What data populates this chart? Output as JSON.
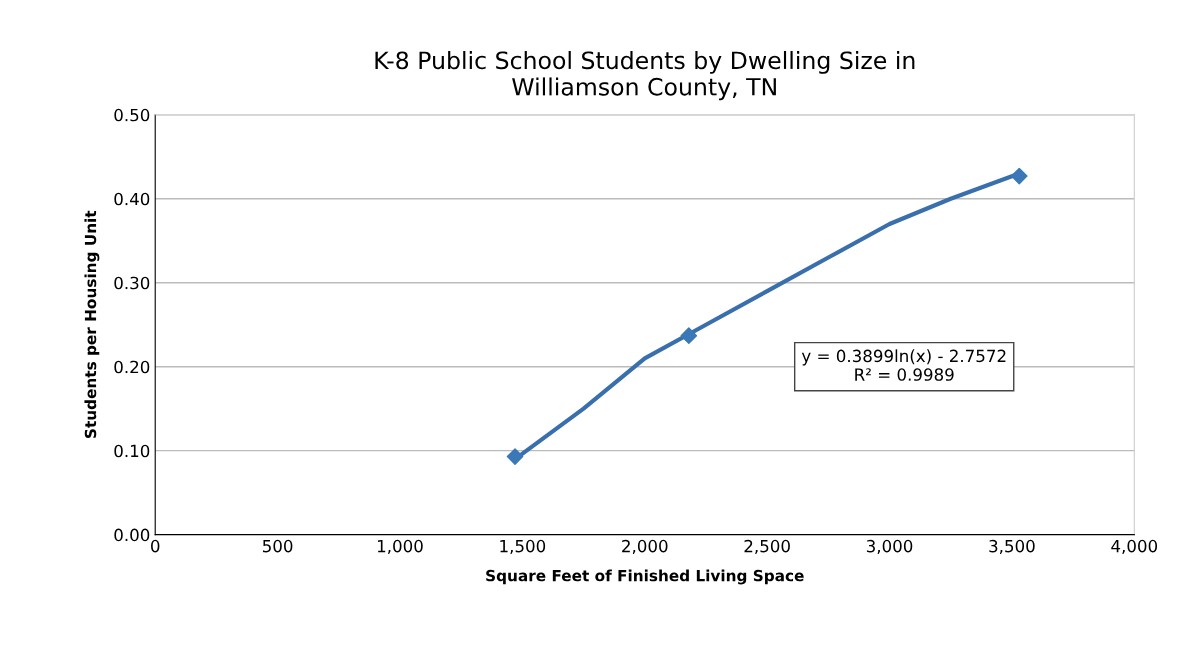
{
  "chart_data": {
    "type": "scatter",
    "title": "K-8 Public School Students by Dwelling Size in\nWilliamson County, TN",
    "xlabel": "Square Feet of Finished Living Space",
    "ylabel": "Students per Housing Unit",
    "series": [
      {
        "color": "#3a78b8",
        "x": [
          1470,
          2180,
          3530
        ],
        "values": [
          0.093,
          0.237,
          0.427
        ],
        "marker": "diamond"
      },
      {
        "type": "line",
        "color": "#3a6fae",
        "x": [
          1470,
          1750,
          2000,
          2250,
          2500,
          2750,
          3000,
          3250,
          3530
        ],
        "values": [
          0.09,
          0.15,
          0.21,
          0.25,
          0.29,
          0.33,
          0.37,
          0.4,
          0.43
        ],
        "line_style": "solid"
      }
    ],
    "annotations": [
      "y = 0.3899ln(x) - 2.7572\nR² = 0.9989"
    ],
    "xlim": [
      0,
      4000
    ],
    "xticks": [
      {
        "value": 0,
        "label": "0"
      },
      {
        "value": 500,
        "label": "500"
      },
      {
        "value": 1000,
        "label": "1,000"
      },
      {
        "value": 1500,
        "label": "1,500"
      },
      {
        "value": 2000,
        "label": "2,000"
      },
      {
        "value": 2500,
        "label": "2,500"
      },
      {
        "value": 3000,
        "label": "3,000"
      },
      {
        "value": 3500,
        "label": "3,500"
      },
      {
        "value": 4000,
        "label": "4,000"
      }
    ],
    "ylim": [
      0,
      0.5
    ],
    "yticks": [
      {
        "value": 0,
        "label": "0.00"
      },
      {
        "value": 0.1,
        "label": "0.10"
      },
      {
        "value": 0.2,
        "label": "0.20"
      },
      {
        "value": 0.3,
        "label": "0.30"
      },
      {
        "value": 0.4,
        "label": "0.40"
      },
      {
        "value": 0.5,
        "label": "0.50"
      }
    ],
    "grid": "y"
  }
}
